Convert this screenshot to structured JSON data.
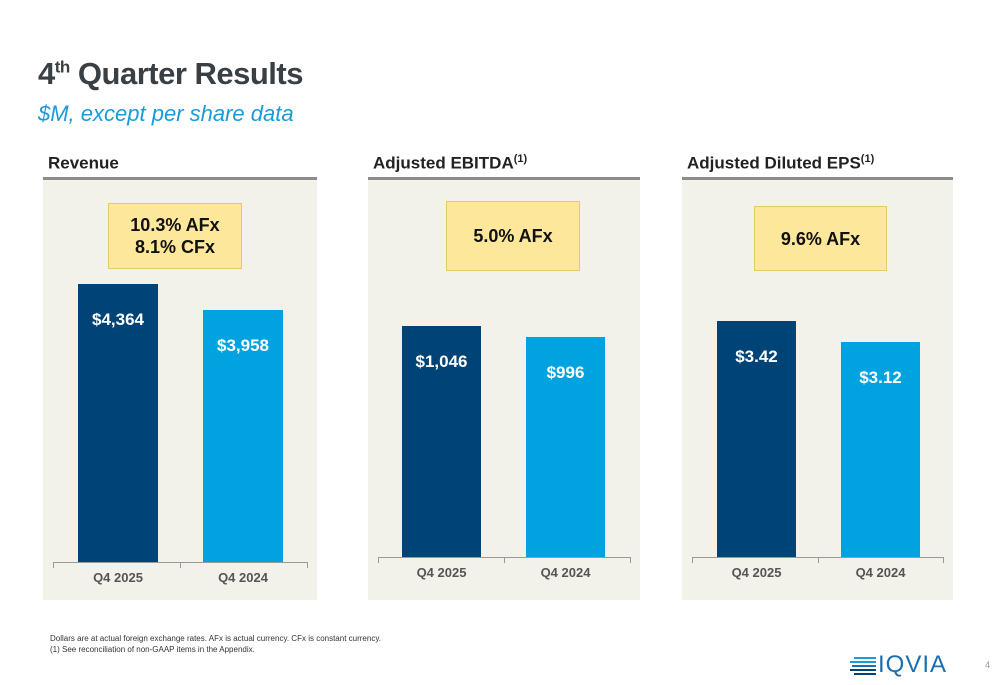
{
  "header": {
    "title_main": "4",
    "title_sup": "th",
    "title_rest": " Quarter Results",
    "subtitle": "$M, except per share data"
  },
  "colors": {
    "current": "#004477",
    "prior": "#00a3e0",
    "callout": "#fce79b",
    "panel": "#f2f1ea"
  },
  "chart_data": [
    {
      "type": "bar",
      "title": "Revenue",
      "title_sup": "",
      "categories": [
        "Q4 2025",
        "Q4 2024"
      ],
      "values": [
        4364,
        3958
      ],
      "labels": [
        "$4,364",
        "$3,958"
      ],
      "callout": [
        "10.3% AFx",
        "8.1% CFx"
      ]
    },
    {
      "type": "bar",
      "title": "Adjusted EBITDA",
      "title_sup": "(1)",
      "categories": [
        "Q4 2025",
        "Q4 2024"
      ],
      "values": [
        1046,
        996
      ],
      "labels": [
        "$1,046",
        "$996"
      ],
      "callout": [
        "5.0% AFx"
      ]
    },
    {
      "type": "bar",
      "title": "Adjusted Diluted EPS",
      "title_sup": "(1)",
      "categories": [
        "Q4 2025",
        "Q4 2024"
      ],
      "values": [
        3.42,
        3.12
      ],
      "labels": [
        "$3.42",
        "$3.12"
      ],
      "callout": [
        "9.6% AFx"
      ]
    }
  ],
  "footer": {
    "note": "Dollars are at actual foreign exchange rates. AFx is actual currency. CFx is constant currency.",
    "note2": "(1)  See reconciliation of non-GAAP items in the Appendix.",
    "logo": "IQVIA",
    "page": "4"
  }
}
